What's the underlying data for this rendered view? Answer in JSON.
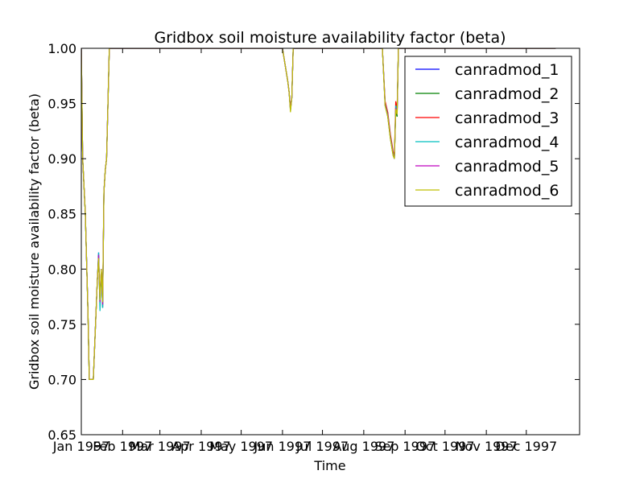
{
  "chart_data": {
    "type": "line",
    "title": "Gridbox soil moisture availability factor (beta)",
    "xlabel": "Time",
    "ylabel": "Gridbox soil moisture availability factor (beta)",
    "xlim": [
      "1997-01-01",
      "1998-01-10"
    ],
    "ylim": [
      0.65,
      1.0
    ],
    "yticks": [
      "0.65",
      "0.70",
      "0.75",
      "0.80",
      "0.85",
      "0.90",
      "0.95",
      "1.00"
    ],
    "xticks": [
      {
        "date": "1997-01-01",
        "label": "Jan 1997"
      },
      {
        "date": "1997-02-01",
        "label": "Feb 1997"
      },
      {
        "date": "1997-03-01",
        "label": "Mar 1997"
      },
      {
        "date": "1997-04-01",
        "label": "Apr 1997"
      },
      {
        "date": "1997-05-01",
        "label": "May 1997"
      },
      {
        "date": "1997-06-01",
        "label": "Jun 1997"
      },
      {
        "date": "1997-07-01",
        "label": "Jul 1997"
      },
      {
        "date": "1997-08-01",
        "label": "Aug 1997"
      },
      {
        "date": "1997-09-01",
        "label": "Sep 1997"
      },
      {
        "date": "1997-10-01",
        "label": "Oct 1997"
      },
      {
        "date": "1997-11-01",
        "label": "Nov 1997"
      },
      {
        "date": "1997-12-01",
        "label": "Dec 1997"
      }
    ],
    "grid": false,
    "legend_position": "top-right",
    "series": [
      {
        "name": "canradmod_1",
        "color": "#0000ff",
        "x": [
          "1997-01-01",
          "1997-01-02",
          "1997-01-04",
          "1997-01-06",
          "1997-01-07",
          "1997-01-08",
          "1997-01-10",
          "1997-01-13",
          "1997-01-14",
          "1997-01-15",
          "1997-01-16",
          "1997-01-17",
          "1997-01-18",
          "1997-01-19",
          "1997-01-20",
          "1997-01-21",
          "1997-01-22",
          "1997-01-24",
          "1997-01-26",
          "1997-01-28",
          "1997-01-29",
          "1997-06-01",
          "1997-06-03",
          "1997-06-05",
          "1997-06-06",
          "1997-06-07",
          "1997-06-08",
          "1997-06-09",
          "1997-08-15",
          "1997-08-17",
          "1997-08-19",
          "1997-08-21",
          "1997-08-23",
          "1997-08-24",
          "1997-08-25",
          "1997-08-26",
          "1997-08-27",
          "1997-08-28",
          "1997-08-29",
          "1997-08-30",
          "1997-12-23"
        ],
        "y": [
          1.0,
          0.9,
          0.85,
          0.76,
          0.7,
          0.7,
          0.7,
          0.79,
          0.815,
          0.77,
          0.8,
          0.765,
          0.87,
          0.89,
          0.9,
          0.95,
          1.0,
          1.0,
          1.0,
          1.0,
          1.0,
          1.0,
          0.985,
          0.97,
          0.96,
          0.945,
          0.955,
          1.0,
          1.0,
          0.95,
          0.94,
          0.92,
          0.905,
          0.9,
          0.945,
          0.94,
          1.0,
          1.0,
          1.0,
          1.0,
          1.0
        ]
      },
      {
        "name": "canradmod_2",
        "color": "#008000",
        "x": [
          "1997-01-01",
          "1997-01-02",
          "1997-01-04",
          "1997-01-06",
          "1997-01-07",
          "1997-01-08",
          "1997-01-10",
          "1997-01-13",
          "1997-01-14",
          "1997-01-15",
          "1997-01-16",
          "1997-01-17",
          "1997-01-18",
          "1997-01-19",
          "1997-01-20",
          "1997-01-21",
          "1997-01-22",
          "1997-01-24",
          "1997-01-26",
          "1997-01-28",
          "1997-01-29",
          "1997-06-01",
          "1997-06-03",
          "1997-06-05",
          "1997-06-06",
          "1997-06-07",
          "1997-06-08",
          "1997-06-09",
          "1997-08-15",
          "1997-08-17",
          "1997-08-19",
          "1997-08-21",
          "1997-08-23",
          "1997-08-24",
          "1997-08-25",
          "1997-08-26",
          "1997-08-27",
          "1997-08-28",
          "1997-08-29",
          "1997-08-30",
          "1997-12-23"
        ],
        "y": [
          1.0,
          0.9,
          0.85,
          0.76,
          0.7,
          0.7,
          0.7,
          0.79,
          0.812,
          0.768,
          0.8,
          0.765,
          0.87,
          0.89,
          0.9,
          0.95,
          1.0,
          1.0,
          1.0,
          1.0,
          1.0,
          1.0,
          0.985,
          0.97,
          0.96,
          0.944,
          0.955,
          1.0,
          1.0,
          0.948,
          0.938,
          0.918,
          0.903,
          0.9,
          0.943,
          0.938,
          1.0,
          1.0,
          1.0,
          1.0,
          1.0
        ]
      },
      {
        "name": "canradmod_3",
        "color": "#ff0000",
        "x": [
          "1997-01-01",
          "1997-01-02",
          "1997-01-04",
          "1997-01-06",
          "1997-01-07",
          "1997-01-08",
          "1997-01-10",
          "1997-01-13",
          "1997-01-14",
          "1997-01-15",
          "1997-01-16",
          "1997-01-17",
          "1997-01-18",
          "1997-01-19",
          "1997-01-20",
          "1997-01-21",
          "1997-01-22",
          "1997-01-24",
          "1997-01-26",
          "1997-01-28",
          "1997-01-29",
          "1997-06-01",
          "1997-06-03",
          "1997-06-05",
          "1997-06-06",
          "1997-06-07",
          "1997-06-08",
          "1997-06-09",
          "1997-08-15",
          "1997-08-17",
          "1997-08-19",
          "1997-08-21",
          "1997-08-23",
          "1997-08-24",
          "1997-08-25",
          "1997-08-26",
          "1997-08-27",
          "1997-08-28",
          "1997-08-29",
          "1997-08-30",
          "1997-12-23"
        ],
        "y": [
          1.0,
          0.9,
          0.85,
          0.76,
          0.7,
          0.7,
          0.7,
          0.79,
          0.81,
          0.77,
          0.8,
          0.77,
          0.87,
          0.89,
          0.9,
          0.95,
          1.0,
          1.0,
          1.0,
          1.0,
          1.0,
          1.0,
          0.985,
          0.97,
          0.96,
          0.945,
          0.955,
          1.0,
          1.0,
          0.952,
          0.942,
          0.922,
          0.907,
          0.902,
          0.952,
          0.945,
          1.0,
          1.0,
          1.0,
          1.0,
          1.0
        ]
      },
      {
        "name": "canradmod_4",
        "color": "#00bfbf",
        "x": [
          "1997-01-01",
          "1997-01-02",
          "1997-01-04",
          "1997-01-06",
          "1997-01-07",
          "1997-01-08",
          "1997-01-10",
          "1997-01-13",
          "1997-01-14",
          "1997-01-15",
          "1997-01-16",
          "1997-01-17",
          "1997-01-18",
          "1997-01-19",
          "1997-01-20",
          "1997-01-21",
          "1997-01-22",
          "1997-01-24",
          "1997-01-26",
          "1997-01-28",
          "1997-01-29",
          "1997-06-01",
          "1997-06-03",
          "1997-06-05",
          "1997-06-06",
          "1997-06-07",
          "1997-06-08",
          "1997-06-09",
          "1997-08-15",
          "1997-08-17",
          "1997-08-19",
          "1997-08-21",
          "1997-08-23",
          "1997-08-24",
          "1997-08-25",
          "1997-08-26",
          "1997-08-27",
          "1997-08-28",
          "1997-08-29",
          "1997-08-30",
          "1997-12-23"
        ],
        "y": [
          1.0,
          0.9,
          0.85,
          0.76,
          0.7,
          0.7,
          0.7,
          0.79,
          0.815,
          0.762,
          0.8,
          0.765,
          0.87,
          0.89,
          0.9,
          0.95,
          1.0,
          1.0,
          1.0,
          1.0,
          1.0,
          1.0,
          0.985,
          0.97,
          0.96,
          0.943,
          0.955,
          1.0,
          1.0,
          0.95,
          0.94,
          0.92,
          0.905,
          0.9,
          0.948,
          0.942,
          1.0,
          1.0,
          1.0,
          1.0,
          1.0
        ]
      },
      {
        "name": "canradmod_5",
        "color": "#bf00bf",
        "x": [
          "1997-01-01",
          "1997-01-02",
          "1997-01-04",
          "1997-01-06",
          "1997-01-07",
          "1997-01-08",
          "1997-01-10",
          "1997-01-13",
          "1997-01-14",
          "1997-01-15",
          "1997-01-16",
          "1997-01-17",
          "1997-01-18",
          "1997-01-19",
          "1997-01-20",
          "1997-01-21",
          "1997-01-22",
          "1997-01-24",
          "1997-01-26",
          "1997-01-28",
          "1997-01-29",
          "1997-06-01",
          "1997-06-03",
          "1997-06-05",
          "1997-06-06",
          "1997-06-07",
          "1997-06-08",
          "1997-06-09",
          "1997-08-15",
          "1997-08-17",
          "1997-08-19",
          "1997-08-21",
          "1997-08-23",
          "1997-08-24",
          "1997-08-25",
          "1997-08-26",
          "1997-08-27",
          "1997-08-28",
          "1997-08-29",
          "1997-08-30",
          "1997-12-23"
        ],
        "y": [
          1.0,
          0.9,
          0.85,
          0.76,
          0.7,
          0.7,
          0.7,
          0.79,
          0.813,
          0.77,
          0.8,
          0.768,
          0.87,
          0.89,
          0.9,
          0.95,
          1.0,
          1.0,
          1.0,
          1.0,
          1.0,
          1.0,
          0.985,
          0.97,
          0.96,
          0.944,
          0.955,
          1.0,
          1.0,
          0.949,
          0.939,
          0.919,
          0.904,
          0.9,
          0.946,
          0.94,
          1.0,
          1.0,
          1.0,
          1.0,
          1.0
        ]
      },
      {
        "name": "canradmod_6",
        "color": "#bfbf00",
        "x": [
          "1997-01-01",
          "1997-01-02",
          "1997-01-04",
          "1997-01-06",
          "1997-01-07",
          "1997-01-08",
          "1997-01-10",
          "1997-01-13",
          "1997-01-14",
          "1997-01-15",
          "1997-01-16",
          "1997-01-17",
          "1997-01-18",
          "1997-01-19",
          "1997-01-20",
          "1997-01-21",
          "1997-01-22",
          "1997-01-24",
          "1997-01-26",
          "1997-01-28",
          "1997-01-29",
          "1997-06-01",
          "1997-06-03",
          "1997-06-05",
          "1997-06-06",
          "1997-06-07",
          "1997-06-08",
          "1997-06-09",
          "1997-08-15",
          "1997-08-17",
          "1997-08-19",
          "1997-08-21",
          "1997-08-23",
          "1997-08-24",
          "1997-08-25",
          "1997-08-26",
          "1997-08-27",
          "1997-08-28",
          "1997-08-29",
          "1997-08-30",
          "1997-12-23"
        ],
        "y": [
          1.0,
          0.9,
          0.85,
          0.76,
          0.7,
          0.7,
          0.7,
          0.79,
          0.81,
          0.772,
          0.8,
          0.77,
          0.87,
          0.89,
          0.9,
          0.95,
          1.0,
          1.0,
          1.0,
          1.0,
          1.0,
          1.0,
          0.985,
          0.97,
          0.96,
          0.942,
          0.955,
          1.0,
          1.0,
          0.948,
          0.938,
          0.918,
          0.903,
          0.9,
          0.945,
          0.94,
          1.0,
          1.0,
          1.0,
          1.0,
          1.0
        ]
      }
    ]
  }
}
